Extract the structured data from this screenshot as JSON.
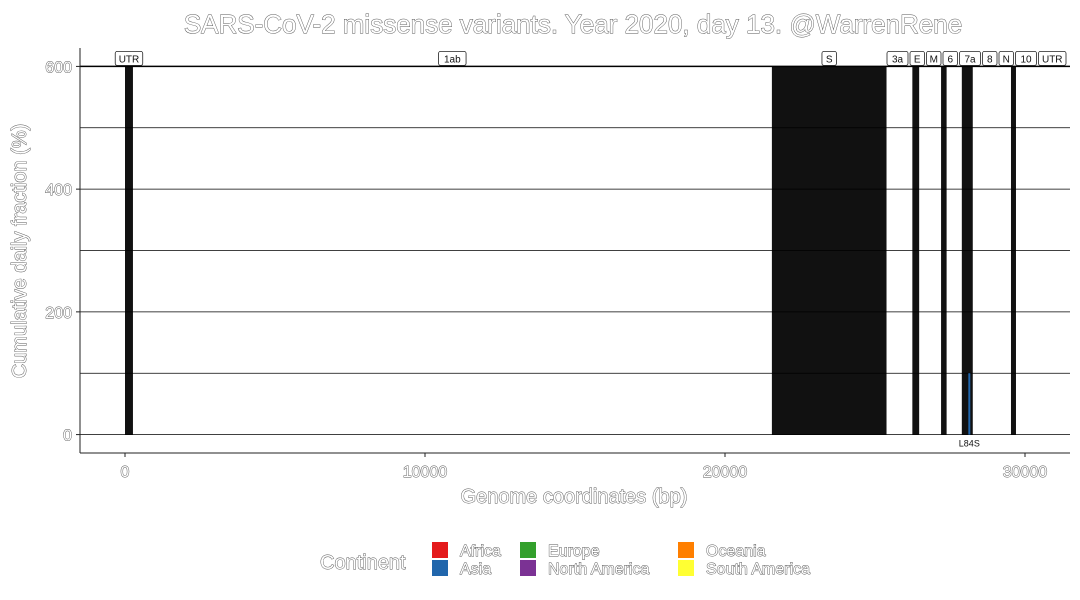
{
  "chart_data": {
    "type": "bar",
    "title": "SARS-CoV-2 missense variants. Year 2020, day 13. @WarrenRene",
    "xlabel": "Genome coordinates (bp)",
    "ylabel": "Cumulative daily fraction (%)",
    "xlim": [
      -1500,
      31500
    ],
    "ylim": [
      -30,
      630
    ],
    "x_ticks": [
      0,
      10000,
      20000,
      30000
    ],
    "x_tick_labels": [
      "0",
      "10000",
      "20000",
      "30000"
    ],
    "y_ticks": [
      0,
      200,
      400,
      600
    ],
    "y_tick_labels": [
      "0",
      "200",
      "400",
      "600"
    ],
    "gridlines_y": [
      0,
      100,
      200,
      300,
      400,
      500,
      600
    ],
    "gene_regions": [
      {
        "label": "UTR",
        "start": 0,
        "end": 265,
        "shaded": true
      },
      {
        "label": "1ab",
        "start": 266,
        "end": 21555,
        "shaded": false
      },
      {
        "label": "S",
        "start": 21563,
        "end": 25384,
        "shaded": true
      },
      {
        "label": "3a",
        "start": 25393,
        "end": 26220,
        "shaded": false
      },
      {
        "label": "E",
        "start": 26245,
        "end": 26472,
        "shaded": true
      },
      {
        "label": "M",
        "start": 26523,
        "end": 27191,
        "shaded": false
      },
      {
        "label": "6",
        "start": 27202,
        "end": 27387,
        "shaded": true
      },
      {
        "label": "7a",
        "start": 27394,
        "end": 27759,
        "shaded": false
      },
      {
        "label": "8",
        "start": 27894,
        "end": 28259,
        "shaded": true
      },
      {
        "label": "N",
        "start": 28274,
        "end": 29533,
        "shaded": false
      },
      {
        "label": "10",
        "start": 29558,
        "end": 29674,
        "shaded": true
      },
      {
        "label": "UTR",
        "start": 29675,
        "end": 29903,
        "shaded": false
      }
    ],
    "series": [
      {
        "name": "Asia",
        "color": "#2166ac",
        "points": [
          {
            "x": 28144,
            "y": 100,
            "label": "L84S"
          }
        ]
      }
    ],
    "legend": {
      "title": "Continent",
      "position": "bottom",
      "entries": [
        {
          "label": "Africa",
          "color": "#e41a1c"
        },
        {
          "label": "Asia",
          "color": "#2166ac"
        },
        {
          "label": "Europe",
          "color": "#33a02c"
        },
        {
          "label": "North America",
          "color": "#7b3294"
        },
        {
          "label": "Oceania",
          "color": "#ff7f00"
        },
        {
          "label": "South America",
          "color": "#ffff33"
        }
      ]
    }
  }
}
